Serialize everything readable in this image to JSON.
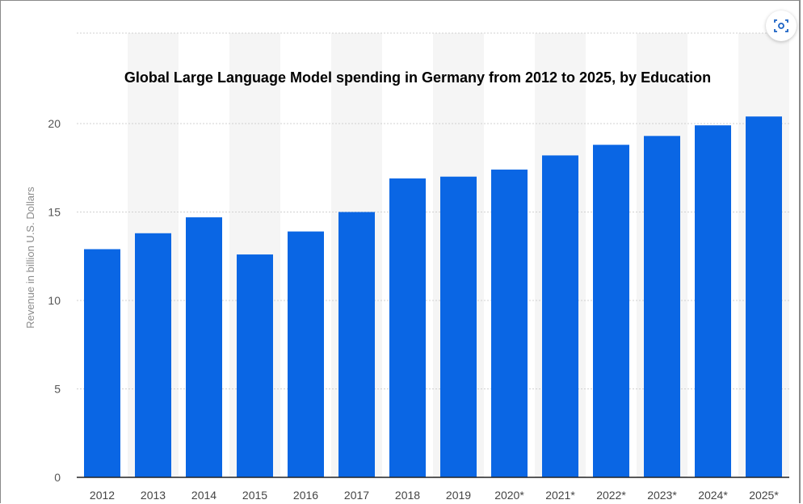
{
  "chart_data": {
    "type": "bar",
    "title": "Global Large Language Model spending in Germany from 2012 to 2025, by Education",
    "xlabel": "",
    "ylabel": "Revenue in billion U.S. Dollars",
    "categories": [
      "2012",
      "2013",
      "2014",
      "2015",
      "2016",
      "2017",
      "2018",
      "2019",
      "2020*",
      "2021*",
      "2022*",
      "2023*",
      "2024*",
      "2025*"
    ],
    "values": [
      12.9,
      13.8,
      14.7,
      12.6,
      13.9,
      15.0,
      16.9,
      17.0,
      17.4,
      18.2,
      18.8,
      19.3,
      19.9,
      20.4
    ],
    "ylim": [
      0,
      20
    ],
    "yticks": [
      0,
      5,
      10,
      15,
      20
    ],
    "grid": true,
    "bar_color": "#0a66e4"
  },
  "ui": {
    "screenshot_icon": "screenshot-icon"
  }
}
